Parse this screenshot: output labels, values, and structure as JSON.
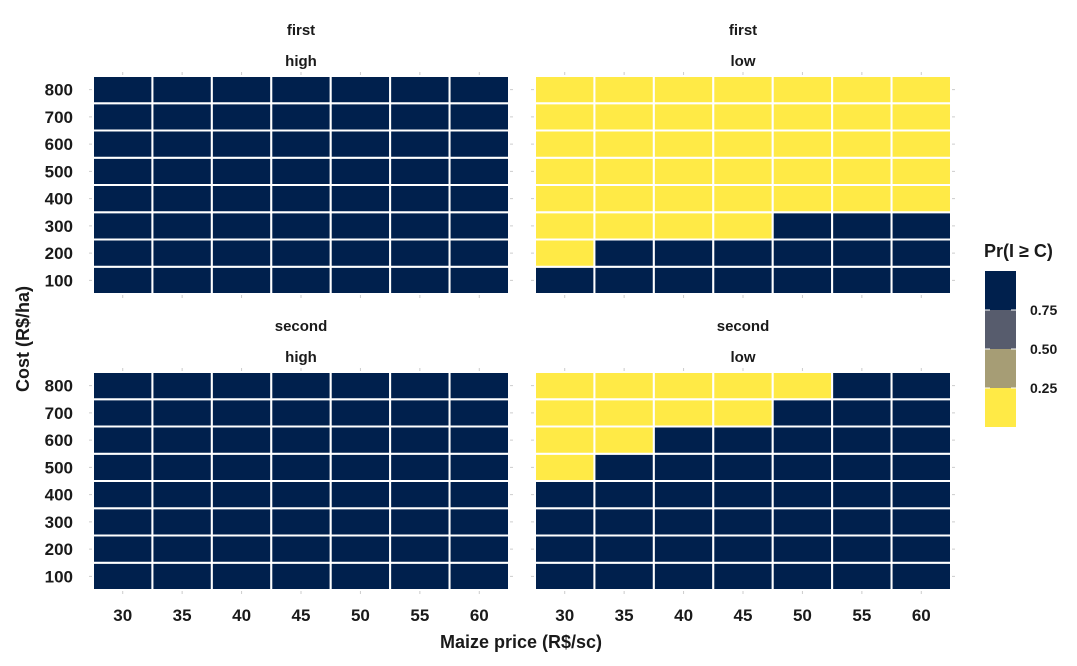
{
  "chart_data": {
    "type": "heatmap",
    "xlabel": "Maize price (R$/sc)",
    "ylabel": "Cost (R$/ha)",
    "x_categories": [
      "30",
      "35",
      "40",
      "45",
      "50",
      "55",
      "60"
    ],
    "y_categories": [
      "100",
      "200",
      "300",
      "400",
      "500",
      "600",
      "700",
      "800"
    ],
    "colors": {
      "high_prob": "#00204d",
      "low_prob": "#ffea46",
      "grid_line": "#ffffff"
    },
    "legend": {
      "title": "Pr(I ≥ C)",
      "placement": "right",
      "labels": [
        "0.75",
        "0.50",
        "0.25"
      ],
      "swatches": [
        "#00204d",
        "#575c6d",
        "#a69d75",
        "#ffea46"
      ]
    },
    "panels": [
      {
        "strip_top": "first",
        "strip_bottom": "high",
        "note": "values indexed [cost][price], cost rows from 100 to 800; 1 = Pr >= 0.75, 0 = Pr < 0.25",
        "values": [
          [
            1,
            1,
            1,
            1,
            1,
            1,
            1
          ],
          [
            1,
            1,
            1,
            1,
            1,
            1,
            1
          ],
          [
            1,
            1,
            1,
            1,
            1,
            1,
            1
          ],
          [
            1,
            1,
            1,
            1,
            1,
            1,
            1
          ],
          [
            1,
            1,
            1,
            1,
            1,
            1,
            1
          ],
          [
            1,
            1,
            1,
            1,
            1,
            1,
            1
          ],
          [
            1,
            1,
            1,
            1,
            1,
            1,
            1
          ],
          [
            1,
            1,
            1,
            1,
            1,
            1,
            1
          ]
        ]
      },
      {
        "strip_top": "first",
        "strip_bottom": "low",
        "values": [
          [
            1,
            1,
            1,
            1,
            1,
            1,
            1
          ],
          [
            0,
            1,
            1,
            1,
            1,
            1,
            1
          ],
          [
            0,
            0,
            0,
            0,
            1,
            1,
            1
          ],
          [
            0,
            0,
            0,
            0,
            0,
            0,
            0
          ],
          [
            0,
            0,
            0,
            0,
            0,
            0,
            0
          ],
          [
            0,
            0,
            0,
            0,
            0,
            0,
            0
          ],
          [
            0,
            0,
            0,
            0,
            0,
            0,
            0
          ],
          [
            0,
            0,
            0,
            0,
            0,
            0,
            0
          ]
        ]
      },
      {
        "strip_top": "second",
        "strip_bottom": "high",
        "values": [
          [
            1,
            1,
            1,
            1,
            1,
            1,
            1
          ],
          [
            1,
            1,
            1,
            1,
            1,
            1,
            1
          ],
          [
            1,
            1,
            1,
            1,
            1,
            1,
            1
          ],
          [
            1,
            1,
            1,
            1,
            1,
            1,
            1
          ],
          [
            1,
            1,
            1,
            1,
            1,
            1,
            1
          ],
          [
            1,
            1,
            1,
            1,
            1,
            1,
            1
          ],
          [
            1,
            1,
            1,
            1,
            1,
            1,
            1
          ],
          [
            1,
            1,
            1,
            1,
            1,
            1,
            1
          ]
        ]
      },
      {
        "strip_top": "second",
        "strip_bottom": "low",
        "values": [
          [
            1,
            1,
            1,
            1,
            1,
            1,
            1
          ],
          [
            1,
            1,
            1,
            1,
            1,
            1,
            1
          ],
          [
            1,
            1,
            1,
            1,
            1,
            1,
            1
          ],
          [
            1,
            1,
            1,
            1,
            1,
            1,
            1
          ],
          [
            0,
            1,
            1,
            1,
            1,
            1,
            1
          ],
          [
            0,
            0,
            1,
            1,
            1,
            1,
            1
          ],
          [
            0,
            0,
            0,
            0,
            1,
            1,
            1
          ],
          [
            0,
            0,
            0,
            0,
            0,
            1,
            1
          ]
        ]
      }
    ]
  }
}
